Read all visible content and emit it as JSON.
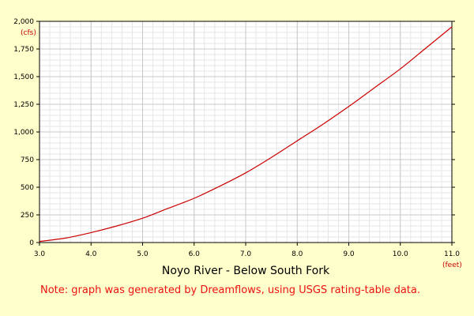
{
  "chart_data": {
    "type": "line",
    "title": "Noyo River - Below South Fork",
    "ylabel": "(cfs)",
    "xlabel": "(feet)",
    "xlim": [
      3.0,
      11.0
    ],
    "ylim": [
      0,
      2000
    ],
    "x_ticks": [
      "3.0",
      "4.0",
      "5.0",
      "6.0",
      "7.0",
      "8.0",
      "9.0",
      "10.0",
      "11.0"
    ],
    "y_ticks": [
      "0",
      "250",
      "500",
      "750",
      "1,000",
      "1,250",
      "1,500",
      "1,750",
      "2,000"
    ],
    "grid": true,
    "line_color": "#cc0000",
    "series": [
      {
        "x": [
          3.0,
          3.5,
          4.0,
          4.5,
          5.0,
          5.5,
          6.0,
          6.5,
          7.0,
          7.5,
          8.0,
          8.5,
          9.0,
          9.5,
          10.0,
          10.5,
          11.0
        ],
        "values": [
          10,
          40,
          90,
          150,
          220,
          310,
          400,
          510,
          630,
          770,
          920,
          1070,
          1230,
          1400,
          1570,
          1760,
          1950
        ]
      }
    ]
  },
  "note": "Note: graph was generated by Dreamflows, using USGS rating-table data."
}
